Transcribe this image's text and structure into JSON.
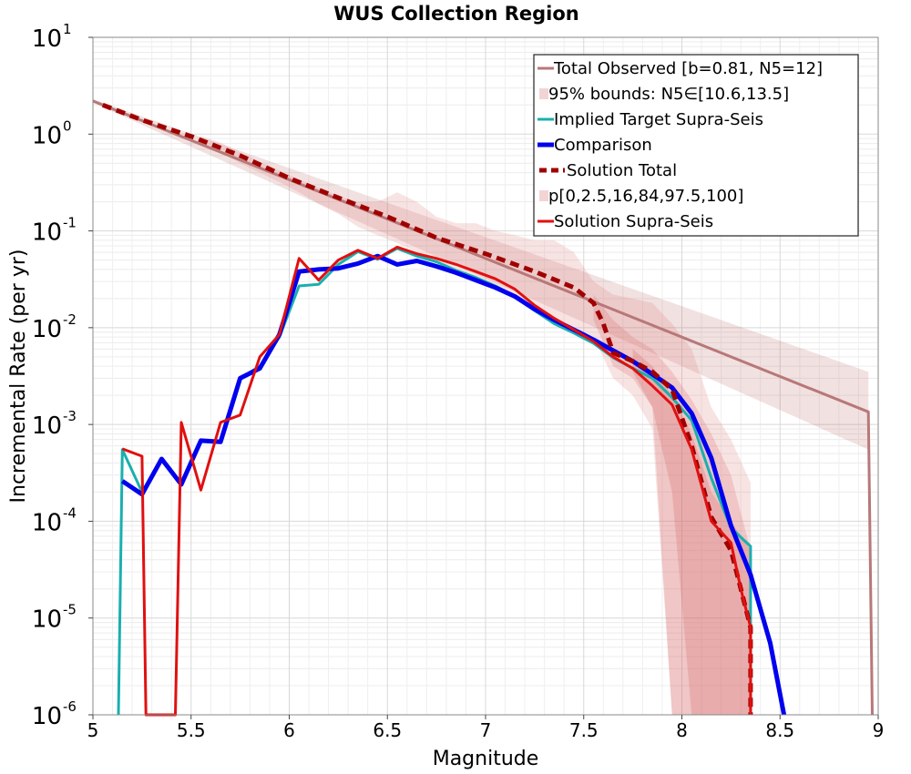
{
  "chart_data": {
    "type": "line",
    "title": "WUS Collection Region",
    "xlabel": "Magnitude",
    "ylabel": "Incremental Rate (per yr)",
    "xlim": [
      5,
      9
    ],
    "ylim_exp": [
      -6,
      1
    ],
    "y_scale": "log",
    "grid": true,
    "legend_position": "top-right",
    "x_ticks": [
      "5",
      "5.5",
      "6",
      "6.5",
      "7",
      "7.5",
      "8",
      "8.5",
      "9"
    ],
    "y_ticks": [
      {
        "base": "10",
        "exp": "-6"
      },
      {
        "base": "10",
        "exp": "-5"
      },
      {
        "base": "10",
        "exp": "-4"
      },
      {
        "base": "10",
        "exp": "-3"
      },
      {
        "base": "10",
        "exp": "-2"
      },
      {
        "base": "10",
        "exp": "-1"
      },
      {
        "base": "10",
        "exp": "0"
      },
      {
        "base": "10",
        "exp": "1"
      }
    ],
    "legend": [
      {
        "label": "Total Observed [b=0.81, N5=12]",
        "color": "#b87878",
        "style": "line"
      },
      {
        "label": "95% bounds: N5∈[10.6,13.5]",
        "color": "#f2d4d4",
        "style": "band"
      },
      {
        "label": "Implied Target Supra-Seis",
        "color": "#1aafaf",
        "style": "line"
      },
      {
        "label": "Comparison",
        "color": "#0000ee",
        "style": "thick"
      },
      {
        "label": "Solution Total",
        "color": "#a00000",
        "style": "dash"
      },
      {
        "label": "p[0,2.5,16,84,97.5,100]",
        "color": "#f2d4d4",
        "style": "band"
      },
      {
        "label": "Solution Supra-Seis",
        "color": "#e01010",
        "style": "line"
      }
    ],
    "bands": [
      {
        "name": "95% bounds",
        "color": "#b85858",
        "opacity": 0.18,
        "x": [
          5.0,
          8.95
        ],
        "log_low_offset": -0.07,
        "log_high_offset": 0.42,
        "end_low": 0.00055,
        "end_high": 0.0035
      },
      {
        "name": "p 0-100",
        "color": "#e08080",
        "opacity": 0.22,
        "x": [
          5.55,
          5.65,
          5.75,
          5.85,
          5.95,
          6.05,
          6.15,
          6.25,
          6.35,
          6.45,
          6.55,
          6.65,
          6.75,
          6.85,
          6.95,
          7.05,
          7.15,
          7.25,
          7.35,
          7.45,
          7.55,
          7.65,
          7.75,
          7.85,
          7.95,
          8.05,
          8.15,
          8.25,
          8.35
        ],
        "low": [
          0.8,
          0.65,
          0.5,
          0.4,
          0.32,
          0.25,
          0.19,
          0.15,
          0.11,
          0.09,
          0.075,
          0.06,
          0.05,
          0.04,
          0.03,
          0.025,
          0.02,
          0.017,
          0.013,
          0.01,
          0.008,
          0.003,
          0.002,
          0.0009,
          1e-06,
          1e-06,
          1e-06,
          1e-06,
          1e-06
        ],
        "high": [
          0.95,
          0.82,
          0.65,
          0.52,
          0.42,
          0.34,
          0.28,
          0.23,
          0.2,
          0.2,
          0.25,
          0.2,
          0.14,
          0.12,
          0.12,
          0.1,
          0.09,
          0.08,
          0.08,
          0.06,
          0.03,
          0.022,
          0.02,
          0.018,
          0.011,
          0.006,
          0.0015,
          0.0007,
          0.00025
        ]
      },
      {
        "name": "p 2.5-97.5",
        "color": "#d86060",
        "opacity": 0.22,
        "x": [
          7.55,
          7.65,
          7.75,
          7.85,
          7.95,
          8.05,
          8.15,
          8.25,
          8.35
        ],
        "low": [
          0.012,
          0.004,
          0.003,
          0.0015,
          1e-06,
          1e-06,
          1e-06,
          1e-06,
          1e-06
        ],
        "high": [
          0.022,
          0.012,
          0.008,
          0.006,
          0.0035,
          0.0018,
          0.0008,
          0.0003,
          5e-05
        ]
      },
      {
        "name": "p 16-84",
        "color": "#d05050",
        "opacity": 0.22,
        "x": [
          7.75,
          7.85,
          7.95,
          8.05,
          8.15,
          8.25,
          8.35
        ],
        "low": [
          0.0035,
          0.0015,
          0.0002,
          1e-06,
          1e-06,
          1e-06,
          1e-06
        ],
        "high": [
          0.006,
          0.004,
          0.002,
          0.0008,
          0.0002,
          0.0001,
          5e-05
        ]
      }
    ],
    "series": [
      {
        "name": "Total Observed [b=0.81, N5=12]",
        "color": "#b87878",
        "width": 3,
        "dash": "",
        "x": [
          5.0,
          8.95,
          8.97
        ],
        "y": [
          2.2,
          0.00135,
          1e-06
        ]
      },
      {
        "name": "Implied Target Supra-Seis",
        "color": "#1aafaf",
        "width": 3,
        "dash": "",
        "x": [
          5.13,
          5.15,
          5.25,
          5.35,
          5.45,
          5.55,
          5.65,
          5.75,
          5.85,
          5.95,
          6.05,
          6.15,
          6.25,
          6.35,
          6.45,
          6.55,
          6.65,
          6.75,
          6.85,
          6.95,
          7.05,
          7.15,
          7.25,
          7.35,
          7.45,
          7.55,
          7.65,
          7.75,
          7.85,
          7.95,
          8.05,
          8.15,
          8.25,
          8.35,
          8.35
        ],
        "y": [
          1e-06,
          0.00055,
          0.0002,
          0.00044,
          0.00024,
          0.00068,
          0.00066,
          0.003,
          0.004,
          0.008,
          0.027,
          0.028,
          0.045,
          0.061,
          0.051,
          0.066,
          0.055,
          0.048,
          0.039,
          0.033,
          0.027,
          0.021,
          0.015,
          0.011,
          0.0088,
          0.0069,
          0.0049,
          0.0038,
          0.003,
          0.0019,
          0.0011,
          0.00028,
          8.5e-05,
          5.5e-05,
          1e-06
        ]
      },
      {
        "name": "Comparison",
        "color": "#0000ee",
        "width": 5,
        "dash": "",
        "x": [
          5.15,
          5.25,
          5.35,
          5.45,
          5.55,
          5.65,
          5.75,
          5.85,
          5.95,
          6.05,
          6.15,
          6.25,
          6.35,
          6.45,
          6.55,
          6.65,
          6.75,
          6.85,
          6.95,
          7.05,
          7.15,
          7.25,
          7.35,
          7.45,
          7.55,
          7.65,
          7.75,
          7.85,
          7.95,
          8.05,
          8.15,
          8.25,
          8.35,
          8.45,
          8.52
        ],
        "y": [
          0.00026,
          0.00019,
          0.00044,
          0.00024,
          0.00068,
          0.00066,
          0.003,
          0.0038,
          0.0085,
          0.038,
          0.04,
          0.041,
          0.046,
          0.055,
          0.045,
          0.049,
          0.043,
          0.037,
          0.031,
          0.026,
          0.021,
          0.0155,
          0.012,
          0.0095,
          0.0075,
          0.0058,
          0.0045,
          0.0033,
          0.0024,
          0.0013,
          0.00045,
          9e-05,
          2.8e-05,
          5.5e-06,
          1e-06
        ]
      },
      {
        "name": "Solution Total",
        "color": "#a00000",
        "width": 5,
        "dash": "10,6",
        "x": [
          5.05,
          5.25,
          5.5,
          5.75,
          6.0,
          6.25,
          6.5,
          6.75,
          7.0,
          7.25,
          7.45,
          7.55,
          7.6,
          7.65,
          7.75,
          7.85,
          7.95,
          8.05,
          8.15,
          8.25,
          8.3,
          8.35,
          8.35
        ],
        "y": [
          2.0,
          1.4,
          0.95,
          0.6,
          0.35,
          0.22,
          0.14,
          0.085,
          0.058,
          0.038,
          0.026,
          0.018,
          0.011,
          0.0055,
          0.0045,
          0.0035,
          0.0023,
          0.0006,
          0.00011,
          5e-05,
          2e-05,
          8e-06,
          1e-06
        ]
      },
      {
        "name": "Solution Supra-Seis",
        "color": "#e01010",
        "width": 3,
        "dash": "",
        "x": [
          5.15,
          5.25,
          5.27,
          5.42,
          5.45,
          5.55,
          5.65,
          5.75,
          5.85,
          5.95,
          6.05,
          6.15,
          6.25,
          6.35,
          6.45,
          6.55,
          6.65,
          6.75,
          6.85,
          6.95,
          7.05,
          7.15,
          7.25,
          7.35,
          7.45,
          7.55,
          7.65,
          7.75,
          7.85,
          7.95,
          8.05,
          8.15,
          8.25,
          8.3,
          8.35,
          8.35
        ],
        "y": [
          0.00056,
          0.00047,
          1e-06,
          1e-06,
          0.00105,
          0.00021,
          0.00105,
          0.00125,
          0.005,
          0.0085,
          0.052,
          0.031,
          0.05,
          0.063,
          0.052,
          0.068,
          0.058,
          0.052,
          0.045,
          0.038,
          0.032,
          0.025,
          0.017,
          0.0125,
          0.0095,
          0.0072,
          0.005,
          0.0038,
          0.0025,
          0.0016,
          0.00055,
          0.0001,
          6e-05,
          2e-05,
          8e-06,
          1e-06
        ]
      }
    ]
  }
}
